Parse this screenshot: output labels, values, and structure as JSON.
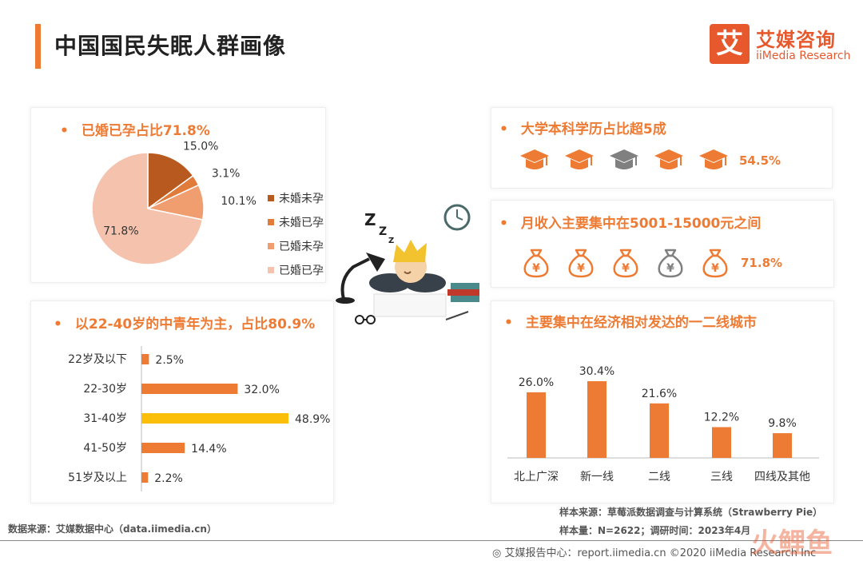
{
  "header": {
    "title": "中国国民失眠人群画像"
  },
  "logo": {
    "mark": "艾",
    "cn": "艾媒咨询",
    "en": "iiMedia Research"
  },
  "colors": {
    "accent": "#ee7b34",
    "dark_orange": "#b85a1f",
    "highlight": "#fbbf0a",
    "gray_icon": "#808080"
  },
  "marriage_panel": {
    "title": "已婚已孕占比71.8%",
    "bullet": "•"
  },
  "education_panel": {
    "title": "大学本科学历占比超5成",
    "bullet": "•",
    "icon": "graduation-cap-icon",
    "icon_count": 5,
    "highlighted_count": 3,
    "percent": "54.5%"
  },
  "income_panel": {
    "title": "月收入主要集中在5001-15000元之间",
    "bullet": "•",
    "icon": "money-bag-icon",
    "icon_count": 5,
    "percent": "71.8%"
  },
  "age_panel": {
    "title": "以22-40岁的中青年为主，占比80.9%",
    "bullet": "•"
  },
  "city_panel": {
    "title": "主要集中在经济相对发达的一二线城市",
    "bullet": "•"
  },
  "illustration": {
    "icon": "sleeping-person-icon"
  },
  "footer": {
    "source_left": "数据来源：艾媒数据中心（data.iimedia.cn）",
    "sample_source": "样本来源：草莓派数据调查与计算系统（Strawberry Pie）",
    "sample_size": "样本量：N=2622；调研时间：2023年4月",
    "site": "艾媒报告中心：report.iimedia.cn  ©2020  iiMedia Research Inc",
    "watermark": "火鲤鱼"
  },
  "chart_data": [
    {
      "type": "pie",
      "title": "已婚已孕占比71.8%",
      "categories": [
        "未婚未孕",
        "未婚已孕",
        "已婚未孕",
        "已婚已孕"
      ],
      "values": [
        15.0,
        3.1,
        10.1,
        71.8
      ],
      "labels": [
        "15.0%",
        "3.1%",
        "10.1%",
        "71.8%"
      ],
      "colors": [
        "#b85a1f",
        "#e07b39",
        "#f09e70",
        "#f5c3ad"
      ],
      "legend": "right"
    },
    {
      "type": "bar",
      "orientation": "horizontal",
      "title": "以22-40岁的中青年为主，占比80.9%",
      "categories": [
        "22岁及以下",
        "22-30岁",
        "31-40岁",
        "41-50岁",
        "51岁及以上"
      ],
      "values": [
        2.5,
        32.0,
        48.9,
        14.4,
        2.2
      ],
      "labels": [
        "2.5%",
        "32.0%",
        "48.9%",
        "14.4%",
        "2.2%"
      ],
      "colors": [
        "#ee7b34",
        "#ee7b34",
        "#fbbf0a",
        "#ee7b34",
        "#ee7b34"
      ],
      "xlim": [
        0,
        48.9
      ]
    },
    {
      "type": "bar",
      "title": "主要集中在经济相对发达的一二线城市",
      "categories": [
        "北上广深",
        "新一线",
        "二线",
        "三线",
        "四线及其他"
      ],
      "values": [
        26.0,
        30.4,
        21.6,
        12.2,
        9.8
      ],
      "labels": [
        "26.0%",
        "30.4%",
        "21.6%",
        "12.2%",
        "9.8%"
      ],
      "color": "#ee7b34",
      "ylim": [
        0,
        30.4
      ]
    }
  ]
}
